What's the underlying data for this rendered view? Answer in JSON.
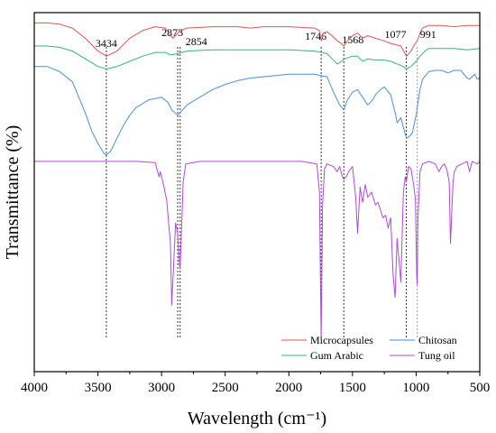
{
  "chart_data": {
    "type": "line",
    "title": "",
    "xlabel": "Wavelength (cm⁻¹)",
    "ylabel": "Transmittance (%)",
    "xlim": [
      4000,
      500
    ],
    "x_reversed": true,
    "xticks": [
      "4000",
      "3500",
      "3000",
      "2500",
      "2000",
      "1500",
      "1000",
      "500"
    ],
    "y_ticks_shown": false,
    "grid": false,
    "legend_position": "bottom-right",
    "annotations": [
      {
        "label": "3434",
        "x": 3434,
        "style": "dotted",
        "color": "#333333"
      },
      {
        "label": "2873",
        "x": 2873,
        "style": "dotted",
        "color": "#333333"
      },
      {
        "label": "2854",
        "x": 2854,
        "style": "dotted",
        "color": "#333333"
      },
      {
        "label": "1746",
        "x": 1746,
        "style": "dotted",
        "color": "#333333"
      },
      {
        "label": "1568",
        "x": 1568,
        "style": "dotted",
        "color": "#333333"
      },
      {
        "label": "1077",
        "x": 1077,
        "style": "dotted",
        "color": "#333333"
      },
      {
        "label": "991",
        "x": 991,
        "style": "dotted",
        "color": "#999999"
      }
    ],
    "series": [
      {
        "name": "Microcapsules",
        "color": "#e05555",
        "points": [
          [
            4000,
            96
          ],
          [
            3900,
            96
          ],
          [
            3800,
            95.5
          ],
          [
            3700,
            94
          ],
          [
            3600,
            90
          ],
          [
            3500,
            85
          ],
          [
            3434,
            83
          ],
          [
            3350,
            85
          ],
          [
            3250,
            90
          ],
          [
            3150,
            93
          ],
          [
            3050,
            94.5
          ],
          [
            2970,
            94
          ],
          [
            2930,
            91
          ],
          [
            2910,
            90
          ],
          [
            2873,
            92
          ],
          [
            2854,
            93
          ],
          [
            2800,
            94
          ],
          [
            2600,
            94.5
          ],
          [
            2400,
            94.5
          ],
          [
            2300,
            94
          ],
          [
            2200,
            94.5
          ],
          [
            2000,
            94.5
          ],
          [
            1800,
            94
          ],
          [
            1760,
            93
          ],
          [
            1746,
            89
          ],
          [
            1730,
            92
          ],
          [
            1700,
            92.5
          ],
          [
            1660,
            91
          ],
          [
            1620,
            89
          ],
          [
            1590,
            88
          ],
          [
            1568,
            87
          ],
          [
            1540,
            89
          ],
          [
            1500,
            91
          ],
          [
            1460,
            92
          ],
          [
            1420,
            90
          ],
          [
            1380,
            91
          ],
          [
            1320,
            90
          ],
          [
            1250,
            89
          ],
          [
            1200,
            88
          ],
          [
            1160,
            87.5
          ],
          [
            1120,
            87
          ],
          [
            1077,
            83
          ],
          [
            1040,
            85
          ],
          [
            1020,
            87
          ],
          [
            991,
            89
          ],
          [
            970,
            92
          ],
          [
            950,
            94
          ],
          [
            900,
            95
          ],
          [
            800,
            95
          ],
          [
            700,
            94.5
          ],
          [
            600,
            95
          ],
          [
            500,
            95
          ]
        ]
      },
      {
        "name": "Gum Arabic",
        "color": "#3bb37a",
        "points": [
          [
            4000,
            87
          ],
          [
            3900,
            87
          ],
          [
            3800,
            86.5
          ],
          [
            3700,
            85
          ],
          [
            3600,
            82
          ],
          [
            3500,
            79
          ],
          [
            3434,
            78
          ],
          [
            3350,
            79
          ],
          [
            3250,
            81
          ],
          [
            3150,
            83
          ],
          [
            3050,
            84.5
          ],
          [
            2970,
            84.5
          ],
          [
            2930,
            83.5
          ],
          [
            2873,
            84
          ],
          [
            2800,
            85
          ],
          [
            2600,
            85.5
          ],
          [
            2400,
            85.5
          ],
          [
            2200,
            85.5
          ],
          [
            2000,
            85.5
          ],
          [
            1800,
            85
          ],
          [
            1740,
            84.5
          ],
          [
            1700,
            84
          ],
          [
            1660,
            82
          ],
          [
            1620,
            80
          ],
          [
            1600,
            80.5
          ],
          [
            1560,
            82
          ],
          [
            1500,
            83
          ],
          [
            1460,
            83
          ],
          [
            1420,
            81
          ],
          [
            1380,
            82
          ],
          [
            1320,
            81.5
          ],
          [
            1250,
            81.5
          ],
          [
            1200,
            81
          ],
          [
            1150,
            80
          ],
          [
            1100,
            79
          ],
          [
            1077,
            78
          ],
          [
            1040,
            79
          ],
          [
            1000,
            81
          ],
          [
            970,
            83
          ],
          [
            930,
            85
          ],
          [
            900,
            86
          ],
          [
            800,
            86
          ],
          [
            700,
            86
          ],
          [
            600,
            85.5
          ],
          [
            500,
            86
          ]
        ]
      },
      {
        "name": "Chitosan",
        "color": "#4a90d9",
        "points": [
          [
            4000,
            79
          ],
          [
            3900,
            79
          ],
          [
            3800,
            77
          ],
          [
            3700,
            73
          ],
          [
            3650,
            67
          ],
          [
            3600,
            61
          ],
          [
            3550,
            54
          ],
          [
            3500,
            49
          ],
          [
            3450,
            45
          ],
          [
            3434,
            44.5
          ],
          [
            3400,
            46
          ],
          [
            3350,
            51
          ],
          [
            3300,
            56
          ],
          [
            3250,
            60
          ],
          [
            3200,
            63
          ],
          [
            3100,
            66
          ],
          [
            3000,
            67
          ],
          [
            2950,
            65
          ],
          [
            2920,
            62
          ],
          [
            2873,
            60
          ],
          [
            2854,
            61
          ],
          [
            2800,
            64
          ],
          [
            2700,
            67
          ],
          [
            2600,
            70
          ],
          [
            2500,
            72
          ],
          [
            2400,
            73.5
          ],
          [
            2300,
            74.5
          ],
          [
            2200,
            75
          ],
          [
            2000,
            76
          ],
          [
            1800,
            76
          ],
          [
            1700,
            75
          ],
          [
            1650,
            69
          ],
          [
            1600,
            64
          ],
          [
            1568,
            62
          ],
          [
            1540,
            66
          ],
          [
            1500,
            69
          ],
          [
            1460,
            70
          ],
          [
            1420,
            67
          ],
          [
            1380,
            64
          ],
          [
            1340,
            66
          ],
          [
            1320,
            68
          ],
          [
            1280,
            70
          ],
          [
            1250,
            71
          ],
          [
            1200,
            68
          ],
          [
            1160,
            60
          ],
          [
            1150,
            57
          ],
          [
            1120,
            59
          ],
          [
            1077,
            51
          ],
          [
            1060,
            51.5
          ],
          [
            1030,
            53
          ],
          [
            1000,
            60
          ],
          [
            970,
            70
          ],
          [
            950,
            74
          ],
          [
            900,
            77
          ],
          [
            850,
            77.5
          ],
          [
            800,
            77.5
          ],
          [
            750,
            76.5
          ],
          [
            700,
            77.5
          ],
          [
            650,
            77.5
          ],
          [
            600,
            74.5
          ],
          [
            580,
            74
          ],
          [
            560,
            75
          ],
          [
            540,
            76
          ],
          [
            520,
            74
          ],
          [
            500,
            74.5
          ]
        ]
      },
      {
        "name": "Tung oil",
        "color": "#b04ad8",
        "points": [
          [
            4000,
            42
          ],
          [
            3800,
            42
          ],
          [
            3600,
            42
          ],
          [
            3434,
            42
          ],
          [
            3200,
            42
          ],
          [
            3050,
            41.5
          ],
          [
            3020,
            36
          ],
          [
            3010,
            38
          ],
          [
            2990,
            34
          ],
          [
            2960,
            27
          ],
          [
            2930,
            10
          ],
          [
            2920,
            -14
          ],
          [
            2905,
            2
          ],
          [
            2890,
            18
          ],
          [
            2873,
            14
          ],
          [
            2860,
            2
          ],
          [
            2854,
            0
          ],
          [
            2845,
            12
          ],
          [
            2830,
            34
          ],
          [
            2810,
            41
          ],
          [
            2700,
            42
          ],
          [
            2500,
            42
          ],
          [
            2300,
            42
          ],
          [
            2100,
            42
          ],
          [
            1900,
            42
          ],
          [
            1780,
            41
          ],
          [
            1760,
            30
          ],
          [
            1746,
            -27
          ],
          [
            1735,
            25
          ],
          [
            1720,
            39
          ],
          [
            1700,
            41
          ],
          [
            1650,
            40
          ],
          [
            1620,
            38
          ],
          [
            1600,
            40
          ],
          [
            1580,
            36
          ],
          [
            1568,
            35
          ],
          [
            1550,
            36
          ],
          [
            1530,
            38
          ],
          [
            1500,
            40
          ],
          [
            1475,
            28
          ],
          [
            1460,
            14
          ],
          [
            1440,
            32
          ],
          [
            1420,
            26
          ],
          [
            1400,
            33
          ],
          [
            1380,
            28
          ],
          [
            1350,
            30
          ],
          [
            1320,
            25
          ],
          [
            1300,
            26
          ],
          [
            1260,
            20
          ],
          [
            1240,
            21
          ],
          [
            1220,
            16
          ],
          [
            1200,
            20
          ],
          [
            1180,
            -3
          ],
          [
            1165,
            -11
          ],
          [
            1150,
            12
          ],
          [
            1120,
            -5
          ],
          [
            1100,
            30
          ],
          [
            1085,
            36
          ],
          [
            1077,
            34
          ],
          [
            1060,
            40
          ],
          [
            1040,
            39
          ],
          [
            1020,
            33
          ],
          [
            1005,
            27
          ],
          [
            995,
            -3
          ],
          [
            991,
            -6
          ],
          [
            985,
            20
          ],
          [
            970,
            38
          ],
          [
            950,
            41
          ],
          [
            900,
            42
          ],
          [
            850,
            41
          ],
          [
            820,
            38
          ],
          [
            800,
            40
          ],
          [
            780,
            41
          ],
          [
            760,
            39
          ],
          [
            740,
            34
          ],
          [
            730,
            10
          ],
          [
            720,
            22
          ],
          [
            710,
            34
          ],
          [
            700,
            38
          ],
          [
            680,
            40
          ],
          [
            640,
            41
          ],
          [
            600,
            42
          ],
          [
            580,
            38
          ],
          [
            560,
            42
          ],
          [
            520,
            41
          ],
          [
            500,
            42
          ]
        ]
      }
    ]
  },
  "legend": [
    {
      "label": "Microcapsules",
      "color": "#e05555"
    },
    {
      "label": "Chitosan",
      "color": "#4a90d9"
    },
    {
      "label": "Gum Arabic",
      "color": "#3bb37a"
    },
    {
      "label": "Tung oil",
      "color": "#b04ad8"
    }
  ]
}
